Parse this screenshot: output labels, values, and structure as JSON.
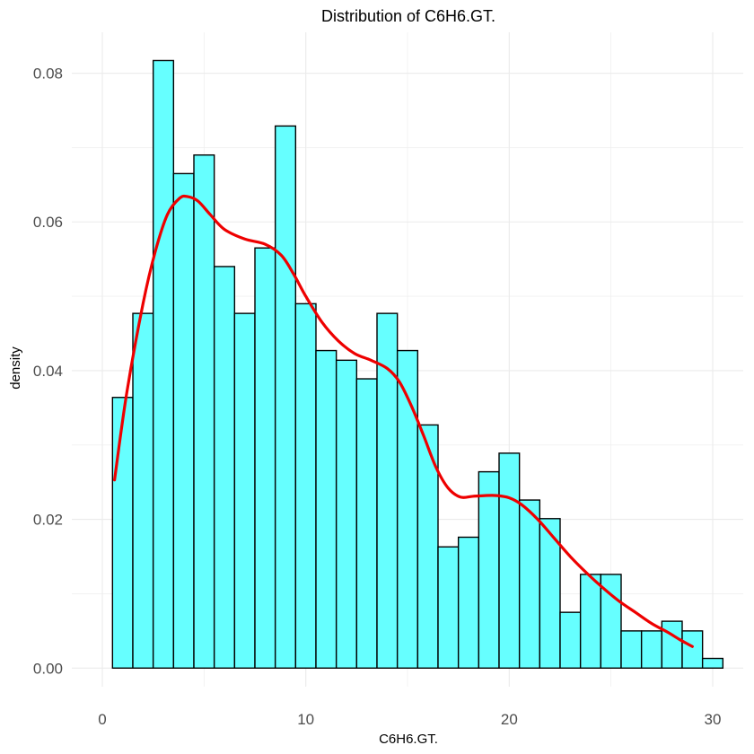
{
  "chart_data": {
    "type": "bar",
    "title": "Distribution of C6H6.GT.",
    "xlabel": "C6H6.GT.",
    "ylabel": "density",
    "xlim": [
      -1.5,
      31.5
    ],
    "ylim": [
      -0.0025,
      0.0855
    ],
    "x_ticks": [
      0,
      10,
      20,
      30
    ],
    "x_tick_labels": [
      "0",
      "10",
      "20",
      "30"
    ],
    "y_ticks": [
      0.0,
      0.02,
      0.04,
      0.06,
      0.08
    ],
    "y_tick_labels": [
      "0.00",
      "0.02",
      "0.04",
      "0.06",
      "0.08"
    ],
    "grid": true,
    "bins": [
      {
        "x0": 0.5,
        "x1": 1.5,
        "value": 0.0364
      },
      {
        "x0": 1.5,
        "x1": 2.5,
        "value": 0.0477
      },
      {
        "x0": 2.5,
        "x1": 3.5,
        "value": 0.0817
      },
      {
        "x0": 3.5,
        "x1": 4.5,
        "value": 0.0665
      },
      {
        "x0": 4.5,
        "x1": 5.5,
        "value": 0.069
      },
      {
        "x0": 5.5,
        "x1": 6.5,
        "value": 0.054
      },
      {
        "x0": 6.5,
        "x1": 7.5,
        "value": 0.0477
      },
      {
        "x0": 7.5,
        "x1": 8.5,
        "value": 0.0565
      },
      {
        "x0": 8.5,
        "x1": 9.5,
        "value": 0.0729
      },
      {
        "x0": 9.5,
        "x1": 10.5,
        "value": 0.049
      },
      {
        "x0": 10.5,
        "x1": 11.5,
        "value": 0.0427
      },
      {
        "x0": 11.5,
        "x1": 12.5,
        "value": 0.0414
      },
      {
        "x0": 12.5,
        "x1": 13.5,
        "value": 0.0389
      },
      {
        "x0": 13.5,
        "x1": 14.5,
        "value": 0.0477
      },
      {
        "x0": 14.5,
        "x1": 15.5,
        "value": 0.0427
      },
      {
        "x0": 15.5,
        "x1": 16.5,
        "value": 0.0327
      },
      {
        "x0": 16.5,
        "x1": 17.5,
        "value": 0.0163
      },
      {
        "x0": 17.5,
        "x1": 18.5,
        "value": 0.0176
      },
      {
        "x0": 18.5,
        "x1": 19.5,
        "value": 0.0264
      },
      {
        "x0": 19.5,
        "x1": 20.5,
        "value": 0.0289
      },
      {
        "x0": 20.5,
        "x1": 21.5,
        "value": 0.0226
      },
      {
        "x0": 21.5,
        "x1": 22.5,
        "value": 0.0201
      },
      {
        "x0": 22.5,
        "x1": 23.5,
        "value": 0.0075
      },
      {
        "x0": 23.5,
        "x1": 24.5,
        "value": 0.0126
      },
      {
        "x0": 24.5,
        "x1": 25.5,
        "value": 0.0126
      },
      {
        "x0": 25.5,
        "x1": 26.5,
        "value": 0.005
      },
      {
        "x0": 26.5,
        "x1": 27.5,
        "value": 0.005
      },
      {
        "x0": 27.5,
        "x1": 28.5,
        "value": 0.0063
      },
      {
        "x0": 28.5,
        "x1": 29.5,
        "value": 0.005
      },
      {
        "x0": 29.5,
        "x1": 30.5,
        "value": 0.0013
      }
    ],
    "density_curve": {
      "x": [
        0.6,
        1.2,
        2.0,
        2.6,
        3.2,
        3.8,
        4.2,
        4.7,
        5.3,
        6.0,
        7.0,
        8.0,
        8.8,
        9.4,
        10.0,
        10.8,
        11.6,
        12.4,
        13.2,
        14.0,
        14.6,
        15.2,
        15.8,
        16.4,
        17.0,
        17.6,
        18.2,
        18.8,
        19.4,
        20.0,
        20.6,
        21.4,
        22.2,
        23.0,
        23.8,
        24.6,
        25.4,
        26.2,
        27.0,
        27.8,
        28.4,
        29.0
      ],
      "y": [
        0.0253,
        0.037,
        0.049,
        0.056,
        0.061,
        0.0632,
        0.0634,
        0.0628,
        0.061,
        0.059,
        0.0577,
        0.057,
        0.0555,
        0.053,
        0.05,
        0.0465,
        0.044,
        0.0423,
        0.0414,
        0.0403,
        0.0385,
        0.0352,
        0.0312,
        0.027,
        0.0242,
        0.023,
        0.0231,
        0.0232,
        0.0232,
        0.0229,
        0.022,
        0.02,
        0.0175,
        0.015,
        0.0128,
        0.0108,
        0.009,
        0.0075,
        0.006,
        0.0048,
        0.0038,
        0.0029
      ]
    },
    "colors": {
      "bar_fill": "#66ffff",
      "bar_stroke": "#000000",
      "curve": "#ee0000",
      "grid": "#ebebeb"
    }
  }
}
